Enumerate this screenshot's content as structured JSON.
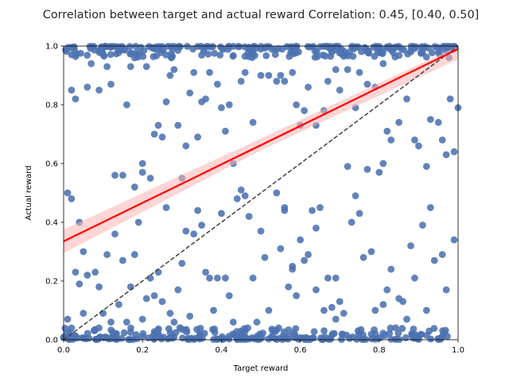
{
  "chart_data": {
    "type": "scatter",
    "title": "Correlation between target and actual reward Correlation: 0.45, [0.40, 0.50]",
    "xlabel": "Target reward",
    "ylabel": "Actual reward",
    "xlim": [
      0,
      1
    ],
    "ylim": [
      0,
      1
    ],
    "xticks": [
      "0.0",
      "0.2",
      "0.4",
      "0.6",
      "0.8",
      "1.0"
    ],
    "yticks": [
      "0.0",
      "0.2",
      "0.4",
      "0.6",
      "0.8",
      "1.0"
    ],
    "grid": false,
    "colors": {
      "points": "#4c72b0",
      "regression_line": "#ff0000",
      "confidence_band": "#ffb3b3",
      "identity_line": "#404040"
    },
    "regression_line": {
      "intercept": 0.335,
      "slope": 0.655
    },
    "confidence_band": {
      "x": [
        0,
        0.5,
        1
      ],
      "lower": [
        0.295,
        0.645,
        0.955
      ],
      "upper": [
        0.375,
        0.685,
        1.0
      ]
    },
    "identity_line": {
      "x": [
        0,
        1
      ],
      "y": [
        0,
        1
      ]
    },
    "points": [
      [
        0.01,
        0.5
      ],
      [
        0.02,
        0.48
      ],
      [
        0.03,
        0.82
      ],
      [
        0.02,
        0.85
      ],
      [
        0.04,
        0.4
      ],
      [
        0.05,
        0.3
      ],
      [
        0.06,
        0.86
      ],
      [
        0.07,
        0.94
      ],
      [
        0.09,
        0.85
      ],
      [
        0.11,
        0.93
      ],
      [
        0.12,
        0.87
      ],
      [
        0.13,
        0.56
      ],
      [
        0.15,
        0.56
      ],
      [
        0.16,
        0.8
      ],
      [
        0.17,
        0.93
      ],
      [
        0.18,
        0.96
      ],
      [
        0.2,
        0.57
      ],
      [
        0.2,
        0.6
      ],
      [
        0.21,
        0.93
      ],
      [
        0.22,
        0.55
      ],
      [
        0.23,
        0.7
      ],
      [
        0.24,
        0.73
      ],
      [
        0.25,
        0.69
      ],
      [
        0.26,
        0.81
      ],
      [
        0.27,
        0.9
      ],
      [
        0.28,
        0.92
      ],
      [
        0.29,
        0.73
      ],
      [
        0.3,
        0.55
      ],
      [
        0.31,
        0.66
      ],
      [
        0.32,
        0.84
      ],
      [
        0.33,
        0.91
      ],
      [
        0.34,
        0.69
      ],
      [
        0.35,
        0.81
      ],
      [
        0.36,
        0.82
      ],
      [
        0.37,
        0.91
      ],
      [
        0.39,
        0.87
      ],
      [
        0.4,
        0.79
      ],
      [
        0.41,
        0.71
      ],
      [
        0.42,
        0.8
      ],
      [
        0.43,
        0.6
      ],
      [
        0.45,
        0.88
      ],
      [
        0.46,
        0.91
      ],
      [
        0.48,
        0.74
      ],
      [
        0.5,
        0.9
      ],
      [
        0.52,
        0.9
      ],
      [
        0.54,
        0.88
      ],
      [
        0.55,
        0.9
      ],
      [
        0.56,
        0.88
      ],
      [
        0.58,
        0.91
      ],
      [
        0.59,
        0.8
      ],
      [
        0.6,
        0.73
      ],
      [
        0.61,
        0.78
      ],
      [
        0.62,
        0.86
      ],
      [
        0.64,
        0.73
      ],
      [
        0.66,
        0.78
      ],
      [
        0.67,
        0.88
      ],
      [
        0.69,
        0.92
      ],
      [
        0.7,
        0.85
      ],
      [
        0.72,
        0.92
      ],
      [
        0.74,
        0.79
      ],
      [
        0.75,
        0.91
      ],
      [
        0.77,
        0.87
      ],
      [
        0.79,
        0.86
      ],
      [
        0.81,
        0.94
      ],
      [
        0.82,
        0.71
      ],
      [
        0.83,
        0.68
      ],
      [
        0.85,
        0.74
      ],
      [
        0.87,
        0.82
      ],
      [
        0.89,
        0.68
      ],
      [
        0.9,
        0.66
      ],
      [
        0.92,
        0.59
      ],
      [
        0.93,
        0.75
      ],
      [
        0.95,
        0.74
      ],
      [
        0.96,
        0.68
      ],
      [
        0.97,
        0.63
      ],
      [
        0.98,
        0.82
      ],
      [
        0.99,
        0.64
      ],
      [
        1.0,
        0.79
      ],
      [
        0.01,
        0.07
      ],
      [
        0.02,
        0.04
      ],
      [
        0.03,
        0.23
      ],
      [
        0.04,
        0.19
      ],
      [
        0.05,
        0.09
      ],
      [
        0.06,
        0.22
      ],
      [
        0.08,
        0.23
      ],
      [
        0.09,
        0.18
      ],
      [
        0.1,
        0.09
      ],
      [
        0.11,
        0.29
      ],
      [
        0.12,
        0.06
      ],
      [
        0.13,
        0.36
      ],
      [
        0.14,
        0.12
      ],
      [
        0.15,
        0.27
      ],
      [
        0.16,
        0.06
      ],
      [
        0.17,
        0.18
      ],
      [
        0.18,
        0.29
      ],
      [
        0.19,
        0.4
      ],
      [
        0.2,
        0.07
      ],
      [
        0.21,
        0.14
      ],
      [
        0.22,
        0.21
      ],
      [
        0.23,
        0.15
      ],
      [
        0.24,
        0.23
      ],
      [
        0.25,
        0.13
      ],
      [
        0.27,
        0.09
      ],
      [
        0.28,
        0.06
      ],
      [
        0.29,
        0.17
      ],
      [
        0.3,
        0.26
      ],
      [
        0.32,
        0.08
      ],
      [
        0.33,
        0.36
      ],
      [
        0.34,
        0.44
      ],
      [
        0.35,
        0.39
      ],
      [
        0.36,
        0.23
      ],
      [
        0.37,
        0.21
      ],
      [
        0.38,
        0.1
      ],
      [
        0.39,
        0.21
      ],
      [
        0.4,
        0.43
      ],
      [
        0.41,
        0.21
      ],
      [
        0.42,
        0.15
      ],
      [
        0.43,
        0.06
      ],
      [
        0.44,
        0.48
      ],
      [
        0.45,
        0.51
      ],
      [
        0.46,
        0.49
      ],
      [
        0.47,
        0.42
      ],
      [
        0.48,
        0.21
      ],
      [
        0.49,
        0.06
      ],
      [
        0.5,
        0.37
      ],
      [
        0.51,
        0.28
      ],
      [
        0.52,
        0.1
      ],
      [
        0.53,
        0.03
      ],
      [
        0.54,
        0.5
      ],
      [
        0.55,
        0.31
      ],
      [
        0.56,
        0.45
      ],
      [
        0.57,
        0.18
      ],
      [
        0.58,
        0.25
      ],
      [
        0.59,
        0.15
      ],
      [
        0.6,
        0.34
      ],
      [
        0.61,
        0.27
      ],
      [
        0.62,
        0.29
      ],
      [
        0.63,
        0.44
      ],
      [
        0.64,
        0.38
      ],
      [
        0.65,
        0.45
      ],
      [
        0.66,
        0.1
      ],
      [
        0.67,
        0.21
      ],
      [
        0.68,
        0.11
      ],
      [
        0.69,
        0.07
      ],
      [
        0.7,
        0.13
      ],
      [
        0.71,
        0.09
      ],
      [
        0.72,
        0.59
      ],
      [
        0.73,
        0.4
      ],
      [
        0.74,
        0.49
      ],
      [
        0.75,
        0.43
      ],
      [
        0.76,
        0.28
      ],
      [
        0.77,
        0.58
      ],
      [
        0.78,
        0.3
      ],
      [
        0.79,
        0.1
      ],
      [
        0.8,
        0.57
      ],
      [
        0.81,
        0.12
      ],
      [
        0.82,
        0.17
      ],
      [
        0.83,
        0.24
      ],
      [
        0.85,
        0.14
      ],
      [
        0.86,
        0.13
      ],
      [
        0.87,
        0.07
      ],
      [
        0.88,
        0.32
      ],
      [
        0.89,
        0.21
      ],
      [
        0.91,
        0.39
      ],
      [
        0.92,
        0.1
      ],
      [
        0.93,
        0.45
      ],
      [
        0.94,
        0.27
      ],
      [
        0.96,
        0.29
      ],
      [
        0.97,
        0.17
      ],
      [
        0.99,
        0.34
      ],
      [
        0.18,
        0.52
      ],
      [
        0.26,
        0.45
      ],
      [
        0.31,
        0.37
      ],
      [
        0.69,
        0.21
      ],
      [
        0.56,
        0.44
      ],
      [
        0.64,
        0.17
      ],
      [
        0.58,
        0.24
      ],
      [
        0.81,
        0.6
      ]
    ]
  }
}
